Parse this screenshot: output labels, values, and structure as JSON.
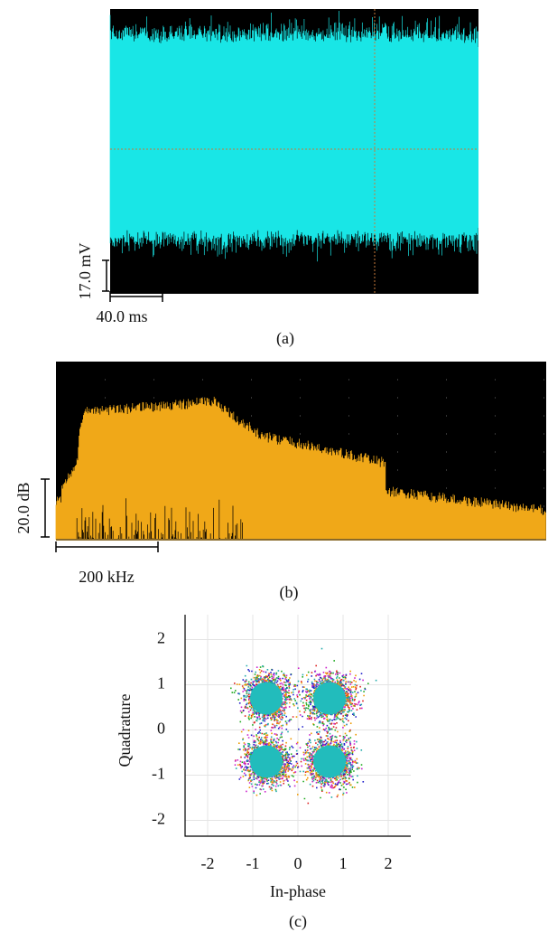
{
  "chart_data": [
    {
      "type": "waveform",
      "color": "#19e6e6",
      "vertical_scale": "17.0 mV",
      "horizontal_scale": "40.0 ms",
      "caption": "(a)"
    },
    {
      "type": "spectrum",
      "color": "#f0a818",
      "vertical_scale": "20.0 dB",
      "horizontal_scale": "200 kHz",
      "caption": "(b)"
    },
    {
      "type": "scatter",
      "x_label": "In-phase",
      "y_label": "Quadrature",
      "caption": "(c)",
      "x": [
        0.7,
        -0.7,
        -0.7,
        0.7
      ],
      "y": [
        0.7,
        0.7,
        -0.7,
        -0.7
      ],
      "color": "#22bcbc",
      "xlim": [
        -2.5,
        2.5
      ],
      "ylim": [
        -2.35,
        2.55
      ],
      "xticks": [
        -2,
        -1,
        0,
        1,
        2
      ],
      "yticks": [
        -2,
        -1,
        0,
        1,
        2
      ],
      "grid": true
    }
  ]
}
